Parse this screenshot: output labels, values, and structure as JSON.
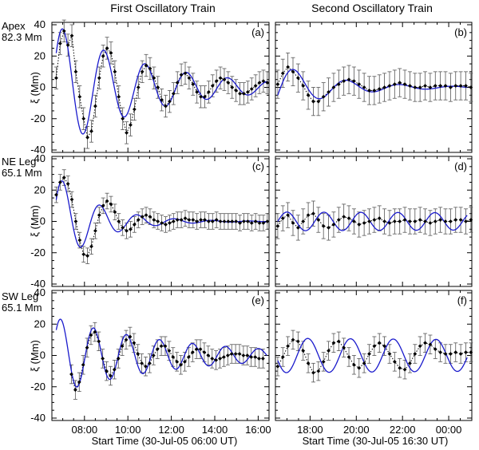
{
  "figure": {
    "column_titles": [
      "First Oscillatory Train",
      "Second Oscillatory Train"
    ],
    "row_labels": [
      {
        "name": "Apex",
        "height": "82.3 Mm"
      },
      {
        "name": "NE Leg",
        "height": "65.1 Mm"
      },
      {
        "name": "SW Leg",
        "height": "65.1 Mm"
      }
    ],
    "ylabel": "ξ (Mm)",
    "xlabels": [
      "Start Time (30-Jul-05 06:00 UT)",
      "Start Time (30-Jul-05 16:30 UT)"
    ],
    "colors": {
      "fit": "#1a1acc",
      "data": "#000000",
      "errorbar": "#555555"
    }
  },
  "chart_data": [
    {
      "type": "line",
      "panel": "(a)",
      "title": "Apex 82.3 Mm — First Oscillatory Train",
      "xlim": [
        6.5,
        16.5
      ],
      "ylim": [
        -40,
        40
      ],
      "xticks": [
        8,
        10,
        12,
        14,
        16
      ],
      "xtick_labels": [
        "08:00",
        "10:00",
        "12:00",
        "14:00",
        "16:00"
      ],
      "yticks": [
        -40,
        -20,
        0,
        20,
        40
      ],
      "series": [
        {
          "name": "observed",
          "style": "dotted-with-errorbars",
          "t0": 6.7,
          "dt": 0.18,
          "err": 7,
          "y": [
            6,
            28,
            36,
            27,
            33,
            10,
            -6,
            -20,
            -32,
            -28,
            -12,
            6,
            20,
            25,
            22,
            10,
            -6,
            -20,
            -29,
            -24,
            -14,
            0,
            10,
            14,
            12,
            6,
            0,
            -8,
            -12,
            -9,
            -4,
            3,
            8,
            9,
            6,
            2,
            -3,
            -6,
            -6,
            -3,
            1,
            4,
            6,
            5,
            3,
            0,
            -2,
            -4,
            -4,
            -3,
            -1,
            1,
            3,
            4,
            3,
            1
          ]
        },
        {
          "name": "damped-sine-fit",
          "style": "solid",
          "amplitude": 40,
          "period_h": 1.9,
          "tau_h": 4.2,
          "t_peak": 7.0,
          "t_start": 6.7,
          "t_end": 16.4
        }
      ]
    },
    {
      "type": "line",
      "panel": "(b)",
      "title": "Apex 82.3 Mm — Second Oscillatory Train",
      "xlim": [
        16.5,
        25.0
      ],
      "ylim": [
        -40,
        40
      ],
      "xticks": [
        18,
        20,
        22,
        24
      ],
      "xtick_labels": [
        "18:00",
        "20:00",
        "22:00",
        "00:00"
      ],
      "yticks": [
        -40,
        -20,
        0,
        20,
        40
      ],
      "series": [
        {
          "name": "observed",
          "style": "dotted-with-errorbars",
          "t0": 16.6,
          "dt": 0.22,
          "err": 9,
          "y": [
            2,
            9,
            13,
            10,
            6,
            1,
            -5,
            -9,
            -9,
            -6,
            -3,
            0,
            2,
            4,
            5,
            4,
            2,
            0,
            -2,
            -2,
            -1,
            0,
            1,
            2,
            3,
            2,
            1,
            0,
            0,
            1,
            0,
            1,
            1,
            1,
            0,
            1,
            1,
            1,
            0
          ]
        },
        {
          "name": "damped-sine-fit",
          "style": "solid",
          "amplitude": 15,
          "period_h": 2.3,
          "tau_h": 2.5,
          "t_peak": 17.3,
          "t_start": 16.6,
          "t_end": 24.8
        }
      ]
    },
    {
      "type": "line",
      "panel": "(c)",
      "title": "NE Leg 65.1 Mm — First Oscillatory Train",
      "xlim": [
        6.5,
        16.5
      ],
      "ylim": [
        -40,
        40
      ],
      "xticks": [
        8,
        10,
        12,
        14,
        16
      ],
      "xtick_labels": [
        "08:00",
        "10:00",
        "12:00",
        "14:00",
        "16:00"
      ],
      "yticks": [
        -40,
        -20,
        0,
        20,
        40
      ],
      "series": [
        {
          "name": "observed",
          "style": "dotted-with-errorbars",
          "t0": 6.7,
          "dt": 0.18,
          "err": 5,
          "y": [
            17,
            25,
            28,
            24,
            14,
            0,
            -12,
            -21,
            -22,
            -16,
            -6,
            4,
            10,
            13,
            11,
            6,
            0,
            -4,
            -6,
            -5,
            -2,
            1,
            3,
            4,
            3,
            1,
            0,
            -1,
            -2,
            -1,
            0,
            1,
            1,
            2,
            1,
            1,
            0,
            1,
            1,
            0,
            0,
            1,
            0,
            0,
            0,
            0,
            0,
            -1,
            0,
            0,
            -1,
            0,
            -1,
            -1,
            0,
            0
          ]
        },
        {
          "name": "damped-sine-fit",
          "style": "solid",
          "amplitude": 30,
          "period_h": 1.72,
          "tau_h": 1.9,
          "t_peak": 7.0,
          "t_start": 6.7,
          "t_end": 16.4
        }
      ]
    },
    {
      "type": "line",
      "panel": "(d)",
      "title": "NE Leg 65.1 Mm — Second Oscillatory Train",
      "xlim": [
        16.5,
        25.0
      ],
      "ylim": [
        -40,
        40
      ],
      "xticks": [
        18,
        20,
        22,
        24
      ],
      "xtick_labels": [
        "18:00",
        "20:00",
        "22:00",
        "00:00"
      ],
      "yticks": [
        -40,
        -20,
        0,
        20,
        40
      ],
      "series": [
        {
          "name": "observed",
          "style": "dotted-with-errorbars",
          "t0": 16.6,
          "dt": 0.22,
          "err": 8,
          "y": [
            -3,
            2,
            4,
            -1,
            -4,
            0,
            4,
            5,
            1,
            -3,
            -4,
            -2,
            1,
            3,
            2,
            0,
            -2,
            -1,
            0,
            1,
            2,
            0,
            -1,
            0,
            0,
            1,
            0,
            0,
            1,
            0,
            -1,
            0,
            1,
            0,
            0,
            1,
            1,
            0,
            1
          ]
        },
        {
          "name": "sine-fit",
          "style": "solid",
          "amplitude": 6,
          "period_h": 1.6,
          "tau_h": 100,
          "t_peak": 17.0,
          "t_start": 16.6,
          "t_end": 24.8
        }
      ]
    },
    {
      "type": "line",
      "panel": "(e)",
      "title": "SW Leg 65.1 Mm — First Oscillatory Train",
      "xlim": [
        6.5,
        16.5
      ],
      "ylim": [
        -40,
        40
      ],
      "xticks": [
        8,
        10,
        12,
        14,
        16
      ],
      "xtick_labels": [
        "08:00",
        "10:00",
        "12:00",
        "14:00",
        "16:00"
      ],
      "yticks": [
        -40,
        -20,
        0,
        20,
        40
      ],
      "series": [
        {
          "name": "observed",
          "style": "dotted-with-errorbars",
          "t0": 7.4,
          "dt": 0.18,
          "err": 6,
          "y": [
            -12,
            -22,
            -17,
            -6,
            5,
            13,
            15,
            9,
            -2,
            -10,
            -13,
            -9,
            -2,
            6,
            10,
            12,
            8,
            1,
            -5,
            -7,
            -5,
            0,
            4,
            6,
            6,
            3,
            -1,
            -4,
            -6,
            -4,
            -1,
            2,
            4,
            4,
            2,
            0,
            -2,
            -3,
            -2,
            -1,
            0,
            1,
            1,
            1,
            0,
            0,
            -1,
            -1,
            -2,
            -2
          ]
        },
        {
          "name": "damped-sine-fit",
          "style": "solid",
          "amplitude": 24,
          "period_h": 1.52,
          "tau_h": 5.5,
          "t_peak": 6.9,
          "t_start": 6.7,
          "t_end": 16.4
        }
      ]
    },
    {
      "type": "line",
      "panel": "(f)",
      "title": "SW Leg 65.1 Mm — Second Oscillatory Train",
      "xlim": [
        16.5,
        25.0
      ],
      "ylim": [
        -40,
        40
      ],
      "xticks": [
        18,
        20,
        22,
        24
      ],
      "xtick_labels": [
        "18:00",
        "20:00",
        "22:00",
        "00:00"
      ],
      "yticks": [
        -40,
        -20,
        0,
        20,
        40
      ],
      "series": [
        {
          "name": "observed",
          "style": "dotted-with-errorbars",
          "t0": 16.6,
          "dt": 0.22,
          "err": 6,
          "y": [
            -7,
            -1,
            6,
            10,
            9,
            3,
            -5,
            -11,
            -10,
            -4,
            3,
            8,
            9,
            5,
            -1,
            -6,
            -8,
            -5,
            1,
            6,
            8,
            6,
            1,
            -4,
            -8,
            -9,
            -5,
            1,
            6,
            8,
            7,
            4,
            2,
            1,
            1,
            2,
            1,
            2,
            2
          ]
        },
        {
          "name": "sine-fit",
          "style": "solid",
          "amplitude": 11,
          "period_h": 1.85,
          "tau_h": 100,
          "t_peak": 17.9,
          "t_start": 16.6,
          "t_end": 24.8
        }
      ]
    }
  ]
}
